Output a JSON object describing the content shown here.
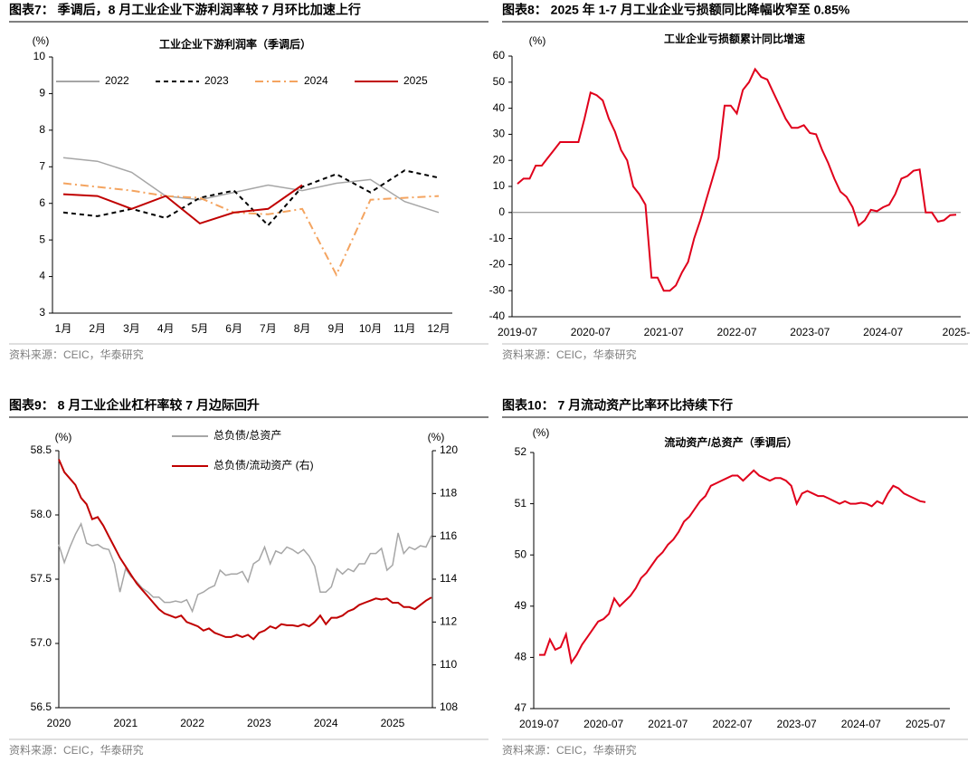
{
  "panels": [
    {
      "figure_title": "图表7：  季调后，8 月工业企业下游利润率较 7 月环比加速上行",
      "source": "资料来源：CEIC，华泰研究"
    },
    {
      "figure_title": "图表8：  2025 年 1-7 月工业企业亏损额同比降幅收窄至 0.85%",
      "source": "资料来源：CEIC，华泰研究"
    },
    {
      "figure_title": "图表9：  8 月工业企业杠杆率较 7 月边际回升",
      "source": "资料来源：CEIC，华泰研究"
    },
    {
      "figure_title": "图表10：  7 月流动资产比率环比持续下行",
      "source": "资料来源：CEIC，华泰研究"
    }
  ],
  "chart_data": [
    {
      "type": "line",
      "title": "工业企业下游利润率（季调后）",
      "y_unit": "(%)",
      "categories": [
        "1月",
        "2月",
        "3月",
        "4月",
        "5月",
        "6月",
        "7月",
        "8月",
        "9月",
        "10月",
        "11月",
        "12月"
      ],
      "ylim": [
        3,
        10
      ],
      "yticks": [
        3,
        4,
        5,
        6,
        7,
        8,
        9,
        10
      ],
      "legend": "top",
      "series": [
        {
          "name": "2022",
          "color": "#a6a6a6",
          "line_style": "solid",
          "values": [
            7.25,
            7.15,
            6.85,
            6.2,
            6.1,
            6.3,
            6.5,
            6.35,
            6.55,
            6.65,
            6.05,
            5.75
          ]
        },
        {
          "name": "2023",
          "color": "#000000",
          "line_style": "dashed",
          "values": [
            5.75,
            5.65,
            5.85,
            5.6,
            6.15,
            6.35,
            5.4,
            6.45,
            6.8,
            6.3,
            6.9,
            6.7
          ]
        },
        {
          "name": "2024",
          "color": "#f4a460",
          "line_style": "dashdot",
          "values": [
            6.55,
            6.45,
            6.35,
            6.2,
            6.15,
            5.75,
            5.7,
            5.85,
            4.05,
            6.1,
            6.15,
            6.2
          ]
        },
        {
          "name": "2025",
          "color": "#c00000",
          "line_style": "solid",
          "values": [
            6.25,
            6.2,
            5.85,
            6.2,
            5.45,
            5.75,
            5.85,
            6.5,
            null,
            null,
            null,
            null
          ]
        }
      ]
    },
    {
      "type": "line",
      "title": "工业企业亏损额累计同比增速",
      "y_unit": "(%)",
      "categories": [
        "2019-07",
        null,
        null,
        null,
        null,
        null,
        null,
        null,
        null,
        null,
        null,
        null,
        "2020-07",
        null,
        null,
        null,
        null,
        null,
        null,
        null,
        null,
        null,
        null,
        null,
        "2021-07",
        null,
        null,
        null,
        null,
        null,
        null,
        null,
        null,
        null,
        null,
        null,
        "2022-07",
        null,
        null,
        null,
        null,
        null,
        null,
        null,
        null,
        null,
        null,
        null,
        "2023-07",
        null,
        null,
        null,
        null,
        null,
        null,
        null,
        null,
        null,
        null,
        null,
        "2024-07",
        null,
        null,
        null,
        null,
        null,
        null,
        null,
        null,
        null,
        null,
        null,
        "2025-"
      ],
      "ylim": [
        -40,
        60
      ],
      "yticks": [
        -40,
        -30,
        -20,
        -10,
        0,
        10,
        20,
        30,
        40,
        50,
        60
      ],
      "series": [
        {
          "name": null,
          "color": "#e0001b",
          "line_style": "solid",
          "values": [
            11,
            13,
            13,
            18,
            18,
            21,
            24,
            27,
            27,
            27,
            27,
            36,
            46,
            45,
            43,
            36,
            31,
            24,
            20,
            10,
            7,
            3,
            -25,
            -25,
            -30,
            -30,
            -28,
            -23,
            -19,
            -10,
            -3,
            5,
            13,
            21,
            41,
            41,
            38,
            47,
            50,
            55,
            52,
            51,
            46,
            41,
            36,
            32.5,
            32.5,
            33.5,
            30.5,
            30,
            24,
            19,
            13,
            8,
            6,
            2,
            -5,
            -3,
            1,
            0.5,
            2,
            3,
            7,
            13,
            14,
            16,
            16.5,
            0,
            0,
            -3.5,
            -3,
            -1,
            -0.85
          ]
        }
      ]
    },
    {
      "type": "line",
      "y_unit": "(%)",
      "y2_unit": "(%)",
      "categories": [
        "2020",
        null,
        null,
        null,
        null,
        null,
        null,
        null,
        null,
        null,
        null,
        null,
        "2021",
        null,
        null,
        null,
        null,
        null,
        null,
        null,
        null,
        null,
        null,
        null,
        "2022",
        null,
        null,
        null,
        null,
        null,
        null,
        null,
        null,
        null,
        null,
        null,
        "2023",
        null,
        null,
        null,
        null,
        null,
        null,
        null,
        null,
        null,
        null,
        null,
        "2024",
        null,
        null,
        null,
        null,
        null,
        null,
        null,
        null,
        null,
        null,
        null,
        "2025",
        null,
        null,
        null,
        null,
        null,
        null,
        null
      ],
      "ylim": [
        56.5,
        58.5
      ],
      "yticks": [
        56.5,
        {
          "value": 57,
          "label": "57.0"
        },
        57.5,
        {
          "value": 58,
          "label": "58.0"
        },
        58.5
      ],
      "y2lim": [
        108,
        120
      ],
      "y2ticks": [
        108,
        110,
        112,
        114,
        116,
        118,
        120
      ],
      "legend": "top",
      "series": [
        {
          "name": "总负债/总资产",
          "color": "#a6a6a6",
          "line_style": "solid",
          "values": [
            57.77,
            57.63,
            57.75,
            57.85,
            57.93,
            57.78,
            57.76,
            57.77,
            57.74,
            57.73,
            57.62,
            57.4,
            57.58,
            57.52,
            57.48,
            57.43,
            57.4,
            57.36,
            57.36,
            57.32,
            57.32,
            57.33,
            57.32,
            57.34,
            57.25,
            57.38,
            57.4,
            57.43,
            57.45,
            57.57,
            57.53,
            57.54,
            57.54,
            57.56,
            57.48,
            57.62,
            57.65,
            57.75,
            57.62,
            57.72,
            57.7,
            57.75,
            57.73,
            57.7,
            57.73,
            57.68,
            57.6,
            57.4,
            57.4,
            57.44,
            57.58,
            57.54,
            57.58,
            57.56,
            57.62,
            57.62,
            57.7,
            57.7,
            57.74,
            57.57,
            57.61,
            57.86,
            57.7,
            57.75,
            57.73,
            57.76,
            57.75,
            57.84
          ]
        },
        {
          "name": "总负债/流动资产 (右)",
          "color": "#c00000",
          "line_style": "solid",
          "axis": "y2",
          "values": [
            119.6,
            119,
            118.7,
            118.4,
            117.8,
            117.5,
            116.8,
            116.9,
            116.5,
            116,
            115.5,
            115,
            114.6,
            114.2,
            113.8,
            113.5,
            113.2,
            112.9,
            112.6,
            112.4,
            112.3,
            112.2,
            112.3,
            112,
            111.9,
            111.8,
            111.6,
            111.7,
            111.5,
            111.4,
            111.3,
            111.3,
            111.4,
            111.3,
            111.4,
            111.2,
            111.5,
            111.6,
            111.8,
            111.7,
            111.9,
            111.85,
            111.85,
            111.8,
            111.9,
            111.8,
            112,
            112.3,
            111.9,
            112.2,
            112.2,
            112.3,
            112.5,
            112.6,
            112.8,
            112.9,
            113,
            113.1,
            113.05,
            113.1,
            112.9,
            112.9,
            112.7,
            112.7,
            112.6,
            112.8,
            113,
            113.15
          ]
        }
      ]
    },
    {
      "type": "line",
      "title": "流动资产/总资产（季调后）",
      "y_unit": "(%)",
      "categories": [
        "2019-07",
        null,
        null,
        null,
        null,
        null,
        null,
        null,
        null,
        null,
        null,
        null,
        "2020-07",
        null,
        null,
        null,
        null,
        null,
        null,
        null,
        null,
        null,
        null,
        null,
        "2021-07",
        null,
        null,
        null,
        null,
        null,
        null,
        null,
        null,
        null,
        null,
        null,
        "2022-07",
        null,
        null,
        null,
        null,
        null,
        null,
        null,
        null,
        null,
        null,
        null,
        "2023-07",
        null,
        null,
        null,
        null,
        null,
        null,
        null,
        null,
        null,
        null,
        null,
        "2024-07",
        null,
        null,
        null,
        null,
        null,
        null,
        null,
        null,
        null,
        null,
        null,
        "2025-07"
      ],
      "ylim": [
        47,
        52
      ],
      "yticks": [
        47,
        48,
        49,
        50,
        51,
        52
      ],
      "series": [
        {
          "name": null,
          "color": "#e0001b",
          "line_style": "solid",
          "values": [
            48.05,
            48.05,
            48.35,
            48.15,
            48.2,
            48.45,
            47.9,
            48.05,
            48.25,
            48.4,
            48.55,
            48.7,
            48.75,
            48.85,
            49.15,
            49,
            49.1,
            49.2,
            49.35,
            49.55,
            49.65,
            49.8,
            49.95,
            50.05,
            50.2,
            50.3,
            50.45,
            50.65,
            50.75,
            50.9,
            51.05,
            51.15,
            51.35,
            51.4,
            51.45,
            51.5,
            51.55,
            51.55,
            51.45,
            51.55,
            51.65,
            51.55,
            51.5,
            51.45,
            51.5,
            51.5,
            51.45,
            51.35,
            51,
            51.2,
            51.25,
            51.2,
            51.15,
            51.15,
            51.1,
            51.05,
            51,
            51.05,
            51,
            51,
            51.02,
            51,
            50.95,
            51.05,
            51,
            51.2,
            51.35,
            51.3,
            51.2,
            51.15,
            51.1,
            51.05,
            51.03
          ]
        }
      ]
    }
  ]
}
